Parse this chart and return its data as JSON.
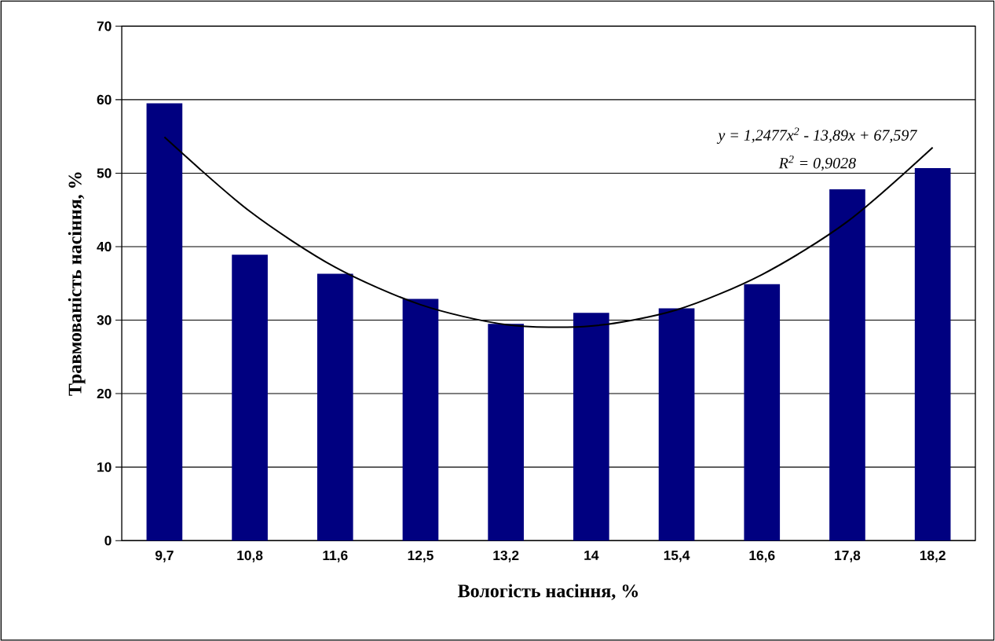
{
  "chart_data": {
    "type": "bar",
    "xlabel": "Вологість насіння, %",
    "ylabel": "Травмованість насіння, %",
    "categories": [
      "9,7",
      "10,8",
      "11,6",
      "12,5",
      "13,2",
      "14",
      "15,4",
      "16,6",
      "17,8",
      "18,2"
    ],
    "series": [
      {
        "color": "#000080",
        "values": [
          59.5,
          38.9,
          36.3,
          32.9,
          29.5,
          31.0,
          31.6,
          34.9,
          47.8,
          50.7
        ]
      },
      {
        "type": "line",
        "color": "#000000",
        "values": [
          54.9,
          44.8,
          37.2,
          32.1,
          29.4,
          29.2,
          31.4,
          36.2,
          43.4,
          53.5
        ]
      }
    ],
    "ylim": [
      0,
      70
    ],
    "yticks": [
      0,
      10,
      20,
      30,
      40,
      50,
      60,
      70
    ],
    "grid": "y",
    "marker": "none",
    "annotations": [
      "y = 1,2477x$^{2}$ - 13,89x + 67,597",
      "R$^{2}$ = 0,9028"
    ]
  }
}
